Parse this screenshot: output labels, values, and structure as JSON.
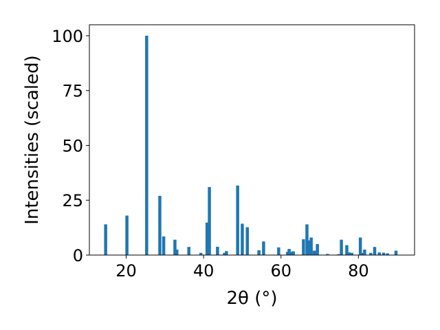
{
  "chart_data": {
    "type": "bar",
    "xlabel": "2θ (°)",
    "ylabel": "Intensities (scaled)",
    "xlim": [
      10.5,
      94.5
    ],
    "ylim": [
      0,
      105
    ],
    "xticks": [
      20,
      40,
      60,
      80
    ],
    "yticks": [
      0,
      25,
      50,
      75,
      100
    ],
    "bar_color": "#1f77b4",
    "bar_width_deg": 0.8,
    "x": [
      14.7,
      20.2,
      25.3,
      28.7,
      29.7,
      32.6,
      33.1,
      36.2,
      39.3,
      40.9,
      41.5,
      43.6,
      45.4,
      45.9,
      48.8,
      50.0,
      51.3,
      54.3,
      55.5,
      59.4,
      61.7,
      62.1,
      62.8,
      63.2,
      65.8,
      66.7,
      67.3,
      67.8,
      68.6,
      69.4,
      72.0,
      74.9,
      75.6,
      77.0,
      77.6,
      78.3,
      80.5,
      81.1,
      81.6,
      83.2,
      84.2,
      85.4,
      86.5,
      87.5,
      89.7
    ],
    "values": [
      14.0,
      18.0,
      100.0,
      27.0,
      8.5,
      7.0,
      2.5,
      3.7,
      1.0,
      14.8,
      31.0,
      3.8,
      1.0,
      1.8,
      31.7,
      14.3,
      12.7,
      2.2,
      6.2,
      3.5,
      1.5,
      2.8,
      1.5,
      1.7,
      7.2,
      14.0,
      6.7,
      8.0,
      2.0,
      5.0,
      0.5,
      0.4,
      7.0,
      4.5,
      1.2,
      1.0,
      8.0,
      1.0,
      2.5,
      1.0,
      3.7,
      1.2,
      1.1,
      0.8,
      2.0
    ]
  }
}
